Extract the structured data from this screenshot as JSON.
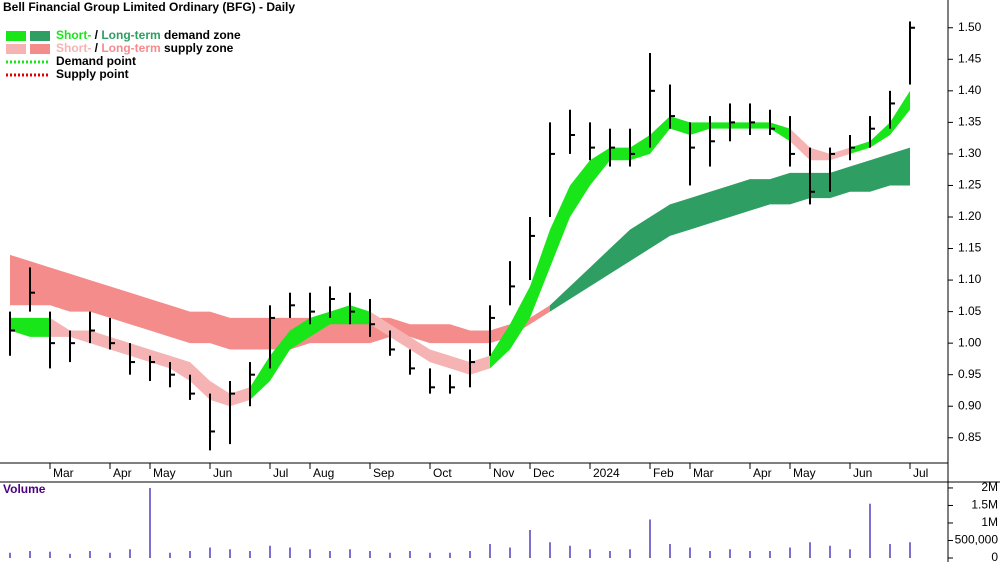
{
  "chart_data": {
    "type": "hlc",
    "title": "Bell Financial Group Limited Ordinary (BFG) - Daily",
    "categories": [
      null,
      null,
      "Mar",
      null,
      null,
      "Apr",
      null,
      "May",
      null,
      null,
      "Jun",
      null,
      null,
      "Jul",
      null,
      "Aug",
      null,
      null,
      "Sep",
      null,
      null,
      "Oct",
      null,
      null,
      "Nov",
      null,
      "Dec",
      null,
      null,
      "2024",
      null,
      null,
      "Feb",
      null,
      "Mar",
      null,
      null,
      "Apr",
      null,
      "May",
      null,
      null,
      "Jun",
      null,
      null,
      "Jul"
    ],
    "high": [
      1.05,
      1.12,
      1.05,
      1.02,
      1.05,
      1.04,
      1.0,
      0.98,
      0.97,
      0.95,
      0.92,
      0.94,
      0.97,
      1.06,
      1.08,
      1.08,
      1.09,
      1.08,
      1.07,
      1.02,
      0.99,
      0.96,
      0.95,
      0.99,
      1.06,
      1.13,
      1.2,
      1.35,
      1.37,
      1.35,
      1.34,
      1.34,
      1.46,
      1.41,
      1.35,
      1.36,
      1.38,
      1.38,
      1.37,
      1.36,
      1.31,
      1.31,
      1.33,
      1.36,
      1.4,
      1.51
    ],
    "low": [
      0.98,
      1.05,
      0.96,
      0.97,
      1.0,
      0.99,
      0.95,
      0.94,
      0.93,
      0.91,
      0.83,
      0.84,
      0.9,
      0.96,
      1.04,
      1.03,
      1.04,
      1.03,
      1.01,
      0.98,
      0.95,
      0.92,
      0.92,
      0.93,
      0.98,
      1.06,
      1.1,
      1.2,
      1.3,
      1.29,
      1.28,
      1.28,
      1.31,
      1.34,
      1.25,
      1.28,
      1.32,
      1.33,
      1.33,
      1.28,
      1.22,
      1.24,
      1.29,
      1.31,
      1.34,
      1.41
    ],
    "close": [
      1.02,
      1.08,
      1.0,
      1.0,
      1.02,
      1.0,
      0.97,
      0.97,
      0.95,
      0.92,
      0.86,
      0.92,
      0.95,
      1.04,
      1.06,
      1.05,
      1.07,
      1.05,
      1.03,
      0.99,
      0.96,
      0.93,
      0.93,
      0.97,
      1.04,
      1.09,
      1.17,
      1.3,
      1.33,
      1.31,
      1.31,
      1.3,
      1.4,
      1.36,
      1.31,
      1.32,
      1.35,
      1.35,
      1.34,
      1.3,
      1.24,
      1.3,
      1.31,
      1.34,
      1.38,
      1.5
    ],
    "bar_color": "#000000",
    "zones": [
      {
        "color": "#f58c8c",
        "upper": [
          1.14,
          1.13,
          1.12,
          1.11,
          1.1,
          1.09,
          1.08,
          1.07,
          1.06,
          1.05,
          1.05,
          1.04,
          1.04,
          1.04,
          1.04,
          1.04,
          1.04,
          1.04,
          1.04,
          1.04,
          1.03,
          1.03,
          1.03,
          1.02,
          1.02,
          1.03,
          1.04,
          1.06,
          null,
          null,
          null,
          null,
          null,
          null,
          null,
          null,
          null,
          null,
          null,
          null,
          null,
          null,
          null,
          null,
          null,
          null
        ],
        "lower": [
          1.06,
          1.06,
          1.06,
          1.05,
          1.05,
          1.04,
          1.03,
          1.02,
          1.01,
          1.0,
          1.0,
          0.99,
          0.99,
          0.99,
          0.99,
          1.0,
          1.0,
          1.0,
          1.0,
          1.01,
          1.01,
          1.0,
          1.0,
          1.0,
          1.0,
          1.01,
          1.03,
          1.05,
          null,
          null,
          null,
          null,
          null,
          null,
          null,
          null,
          null,
          null,
          null,
          null,
          null,
          null,
          null,
          null,
          null,
          null
        ]
      },
      {
        "color": "#2e9e63",
        "upper": [
          null,
          null,
          null,
          null,
          null,
          null,
          null,
          null,
          null,
          null,
          null,
          null,
          null,
          null,
          null,
          null,
          null,
          null,
          null,
          null,
          null,
          null,
          null,
          null,
          null,
          null,
          null,
          1.06,
          1.09,
          1.12,
          1.15,
          1.18,
          1.2,
          1.22,
          1.23,
          1.24,
          1.25,
          1.26,
          1.26,
          1.27,
          1.27,
          1.27,
          1.28,
          1.29,
          1.3,
          1.31
        ],
        "lower": [
          null,
          null,
          null,
          null,
          null,
          null,
          null,
          null,
          null,
          null,
          null,
          null,
          null,
          null,
          null,
          null,
          null,
          null,
          null,
          null,
          null,
          null,
          null,
          null,
          null,
          null,
          null,
          1.05,
          1.07,
          1.09,
          1.11,
          1.13,
          1.15,
          1.17,
          1.18,
          1.19,
          1.2,
          1.21,
          1.22,
          1.22,
          1.23,
          1.23,
          1.24,
          1.24,
          1.25,
          1.25
        ]
      },
      {
        "color": "#f6b3b3",
        "upper": [
          null,
          null,
          1.04,
          1.02,
          1.02,
          1.01,
          1.0,
          0.99,
          0.98,
          0.97,
          0.94,
          0.92,
          0.93,
          null,
          null,
          null,
          null,
          null,
          1.05,
          1.03,
          1.01,
          0.99,
          0.98,
          0.97,
          0.98,
          null,
          null,
          null,
          null,
          null,
          null,
          null,
          null,
          null,
          null,
          null,
          null,
          null,
          null,
          1.34,
          1.31,
          1.3,
          1.31,
          null,
          null,
          null
        ],
        "lower": [
          null,
          null,
          1.01,
          1.01,
          1.0,
          0.99,
          0.98,
          0.97,
          0.96,
          0.94,
          0.91,
          0.9,
          0.91,
          null,
          null,
          null,
          null,
          null,
          1.03,
          1.01,
          0.99,
          0.97,
          0.96,
          0.95,
          0.96,
          null,
          null,
          null,
          null,
          null,
          null,
          null,
          null,
          null,
          null,
          null,
          null,
          null,
          null,
          1.32,
          1.29,
          1.29,
          1.3,
          null,
          null,
          null
        ]
      },
      {
        "color": "#19e619",
        "upper": [
          1.04,
          1.04,
          1.04,
          null,
          null,
          null,
          null,
          null,
          null,
          null,
          null,
          null,
          0.93,
          0.98,
          1.02,
          1.04,
          1.05,
          1.06,
          1.05,
          null,
          null,
          null,
          null,
          null,
          0.98,
          1.03,
          1.09,
          1.18,
          1.25,
          1.29,
          1.31,
          1.31,
          1.33,
          1.36,
          1.35,
          1.35,
          1.35,
          1.35,
          1.35,
          1.34,
          null,
          null,
          1.31,
          1.32,
          1.35,
          1.4
        ],
        "lower": [
          1.02,
          1.01,
          1.01,
          null,
          null,
          null,
          null,
          null,
          null,
          null,
          null,
          null,
          0.91,
          0.94,
          0.99,
          1.01,
          1.03,
          1.03,
          1.03,
          null,
          null,
          null,
          null,
          null,
          0.96,
          0.99,
          1.04,
          1.12,
          1.2,
          1.25,
          1.29,
          1.29,
          1.3,
          1.34,
          1.33,
          1.34,
          1.34,
          1.34,
          1.34,
          1.32,
          null,
          null,
          1.3,
          1.31,
          1.33,
          1.37
        ]
      }
    ],
    "ylim": [
      0.81,
      1.544
    ],
    "yticks": [
      0.85,
      {
        "value": 0.9,
        "label": "0.90"
      },
      0.95,
      {
        "value": 1.0,
        "label": "1.00"
      },
      1.05,
      {
        "value": 1.1,
        "label": "1.10"
      },
      1.15,
      {
        "value": 1.2,
        "label": "1.20"
      },
      1.25,
      {
        "value": 1.3,
        "label": "1.30"
      },
      1.35,
      {
        "value": 1.4,
        "label": "1.40"
      },
      1.45,
      {
        "value": 1.5,
        "label": "1.50"
      }
    ],
    "legend": [
      {
        "parts": [
          "Short-",
          " / ",
          "Long-term",
          " demand zone"
        ],
        "colors": [
          "#19e619",
          "#2e9e63"
        ]
      },
      {
        "parts": [
          "Short-",
          " / ",
          "Long-term",
          " supply zone"
        ],
        "colors": [
          "#f6b3b3",
          "#f58c8c"
        ]
      },
      {
        "parts": [
          "Demand point"
        ],
        "colors": [
          "#19e619"
        ]
      },
      {
        "parts": [
          "Supply point"
        ],
        "colors": [
          "#e00000"
        ]
      }
    ],
    "volume": {
      "label": "Volume",
      "color": "#7b6fd0",
      "values": [
        150000,
        200000,
        180000,
        120000,
        200000,
        150000,
        250000,
        2000000,
        150000,
        200000,
        300000,
        250000,
        200000,
        350000,
        300000,
        250000,
        200000,
        250000,
        200000,
        150000,
        200000,
        150000,
        150000,
        200000,
        400000,
        300000,
        800000,
        450000,
        350000,
        250000,
        200000,
        250000,
        1100000,
        400000,
        300000,
        200000,
        250000,
        200000,
        200000,
        300000,
        450000,
        350000,
        250000,
        1550000,
        400000,
        450000
      ],
      "ylim": [
        0,
        2170000
      ],
      "yticks": [
        0,
        {
          "value": 500000,
          "label": "500,000"
        },
        {
          "value": 1000000,
          "label": "1M"
        },
        {
          "value": 1500000,
          "label": "1.5M"
        },
        {
          "value": 2000000,
          "label": "2M"
        }
      ]
    }
  }
}
